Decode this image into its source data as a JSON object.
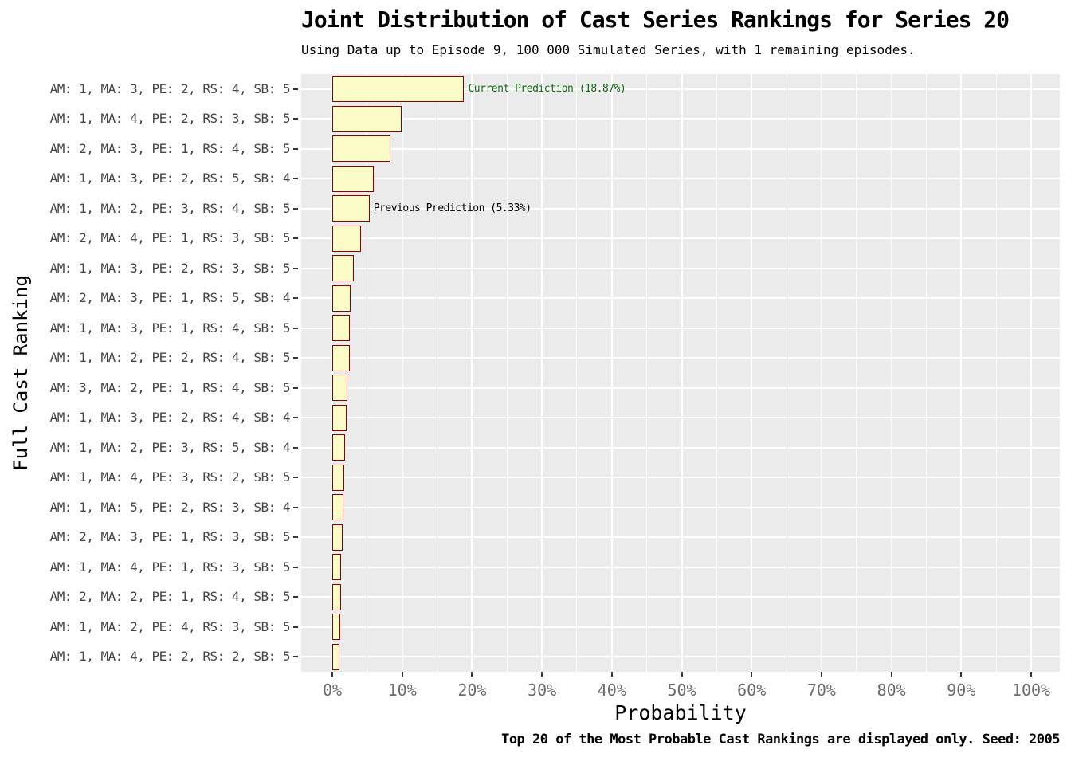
{
  "chart_data": {
    "type": "bar",
    "orientation": "horizontal",
    "title": "Joint Distribution of Cast Series Rankings for Series 20",
    "subtitle": "Using Data up to Episode 9, 100 000 Simulated Series, with 1 remaining episodes.",
    "caption": "Top 20 of the Most Probable Cast Rankings are displayed only. Seed: 2005",
    "xlabel": "Probability",
    "ylabel": "Full Cast Ranking",
    "xlim": [
      0,
      104
    ],
    "x_tick_values": [
      0,
      10,
      20,
      30,
      40,
      50,
      60,
      70,
      80,
      90,
      100
    ],
    "x_ticks": [
      "0%",
      "10%",
      "20%",
      "30%",
      "40%",
      "50%",
      "60%",
      "70%",
      "80%",
      "90%",
      "100%"
    ],
    "minor_tick_values": [
      5,
      15,
      25,
      35,
      45,
      55,
      65,
      75,
      85,
      95
    ],
    "grid": "major and minor vertical white lines, major horizontal white lines at row centers",
    "legend": "none",
    "categories": [
      "AM: 1, MA: 3, PE: 2, RS: 4, SB: 5",
      "AM: 1, MA: 4, PE: 2, RS: 3, SB: 5",
      "AM: 2, MA: 3, PE: 1, RS: 4, SB: 5",
      "AM: 1, MA: 3, PE: 2, RS: 5, SB: 4",
      "AM: 1, MA: 2, PE: 3, RS: 4, SB: 5",
      "AM: 2, MA: 4, PE: 1, RS: 3, SB: 5",
      "AM: 1, MA: 3, PE: 2, RS: 3, SB: 5",
      "AM: 2, MA: 3, PE: 1, RS: 5, SB: 4",
      "AM: 1, MA: 3, PE: 1, RS: 4, SB: 5",
      "AM: 1, MA: 2, PE: 2, RS: 4, SB: 5",
      "AM: 3, MA: 2, PE: 1, RS: 4, SB: 5",
      "AM: 1, MA: 3, PE: 2, RS: 4, SB: 4",
      "AM: 1, MA: 2, PE: 3, RS: 5, SB: 4",
      "AM: 1, MA: 4, PE: 3, RS: 2, SB: 5",
      "AM: 1, MA: 5, PE: 2, RS: 3, SB: 4",
      "AM: 2, MA: 3, PE: 1, RS: 3, SB: 5",
      "AM: 1, MA: 4, PE: 1, RS: 3, SB: 5",
      "AM: 2, MA: 2, PE: 1, RS: 4, SB: 5",
      "AM: 1, MA: 2, PE: 4, RS: 3, SB: 5",
      "AM: 1, MA: 4, PE: 2, RS: 2, SB: 5"
    ],
    "values": [
      18.87,
      9.9,
      8.3,
      5.9,
      5.33,
      4.1,
      3.1,
      2.6,
      2.55,
      2.5,
      2.15,
      2.0,
      1.85,
      1.75,
      1.6,
      1.45,
      1.25,
      1.2,
      1.1,
      1.05
    ],
    "annotations": [
      {
        "row": 0,
        "text": "Current Prediction (18.87%)",
        "color": "#0e6e0e"
      },
      {
        "row": 4,
        "text": "Previous Prediction (5.33%)",
        "color": "#000000"
      }
    ],
    "colors": {
      "bar_fill": "#FBFBC8",
      "bar_border": "#8B0000",
      "panel_background": "#EBEBEB",
      "gridline": "#FFFFFF",
      "axis_text": "#454545",
      "x_tick_text": "#6b6b6b",
      "current_prediction_text": "#0e6e0e"
    }
  }
}
